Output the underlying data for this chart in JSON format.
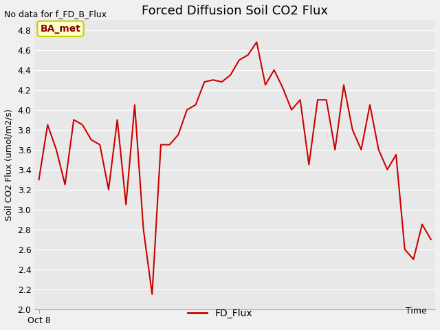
{
  "title": "Forced Diffusion Soil CO2 Flux",
  "ylabel": "Soil CO2 Flux (umol/m2/s)",
  "xlabel_text": "Time",
  "top_left_note": "No data for f_FD_B_Flux",
  "legend_label": "FD_Flux",
  "legend_box_label": "BA_met",
  "ylim": [
    2.0,
    4.9
  ],
  "yticks": [
    2.0,
    2.2,
    2.4,
    2.6,
    2.8,
    3.0,
    3.2,
    3.4,
    3.6,
    3.8,
    4.0,
    4.2,
    4.4,
    4.6,
    4.8
  ],
  "x_tick_label": "Oct 8",
  "line_color": "#cc0000",
  "line_width": 1.5,
  "fig_bg_color": "#f0f0f0",
  "plot_bg_color": "#e8e8e8",
  "y_values": [
    3.3,
    3.85,
    3.6,
    3.25,
    3.9,
    3.85,
    3.7,
    3.65,
    3.2,
    3.9,
    3.05,
    4.05,
    2.8,
    2.15,
    3.65,
    3.65,
    3.75,
    4.0,
    4.05,
    4.28,
    4.3,
    4.28,
    4.35,
    4.5,
    4.55,
    4.68,
    4.25,
    4.4,
    4.22,
    4.0,
    4.1,
    3.45,
    4.1,
    4.1,
    3.6,
    4.25,
    3.8,
    3.6,
    4.05,
    3.6,
    3.4,
    3.55,
    2.6,
    2.5,
    2.85,
    2.7
  ],
  "title_fontsize": 13,
  "ylabel_fontsize": 9,
  "tick_labelsize": 9,
  "note_fontsize": 9,
  "ba_met_fontsize": 10,
  "legend_fontsize": 10
}
